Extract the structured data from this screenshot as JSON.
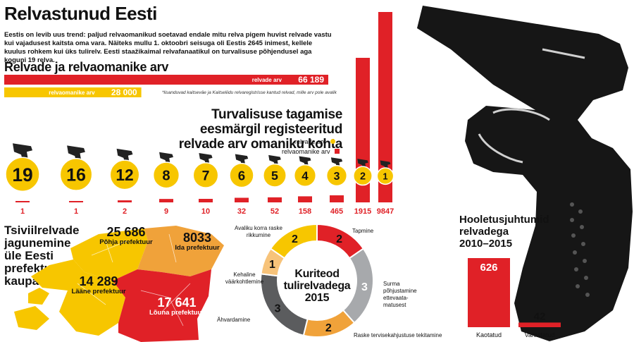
{
  "title": "Relvastunud Eesti",
  "intro": "Eestis on levib uus trend: paljud relvaomanikud soetavad endale mitu relva pigem huvist relvade vastu kui vajadusest kaitsta oma vara. Näiteks mullu 1. oktoobri seisuga oli Eestis 2645 inimest, kellele kuulus rohkem kui üks tulirelv. Eesti staažikaimal relvafanaatikul on turvalisuse põhjendusel aga koguni 19 relva.",
  "colors": {
    "red": "#e02127",
    "yellow": "#f7c600",
    "orange": "#f0a23a",
    "gray": "#6d6e71"
  },
  "chart_data": [
    {
      "type": "bar",
      "title": "Relvade ja relvaomanike arv",
      "categories": [
        "relvade arv",
        "relvaomanike arv"
      ],
      "values": [
        66189,
        28000
      ],
      "value_labels": [
        "66 189",
        "28 000"
      ],
      "note": "*lisanduvad kaitseväe ja Kaitseliidu relvaregistrisse kantud relvad, mille arv pole avalik"
    },
    {
      "type": "bar",
      "title": "Turvalisuse tagamise eesmärgil registeeritud relvade arv omaniku kohta",
      "legend": [
        "relvade arv",
        "relvaomanike arv"
      ],
      "weapons_per_owner": [
        19,
        16,
        12,
        8,
        7,
        6,
        5,
        4,
        3,
        2,
        1
      ],
      "owners": [
        1,
        1,
        2,
        9,
        10,
        32,
        52,
        158,
        465,
        1915,
        9847
      ],
      "owner_labels": [
        "1",
        "1",
        "2",
        "9",
        "10",
        "32",
        "52",
        "158",
        "465",
        "1915",
        "9847"
      ]
    },
    {
      "type": "map",
      "title": "Tsiviilrelvade jagunemine üle Eesti prefektuuride kaupa",
      "regions": [
        {
          "name": "Põhja prefektuur",
          "value": "25 686"
        },
        {
          "name": "Ida prefektuur",
          "value": "8033"
        },
        {
          "name": "Lääne prefektuur",
          "value": "14 289"
        },
        {
          "name": "Lõuna prefektuur",
          "value": "17 641"
        }
      ]
    },
    {
      "type": "pie",
      "title": "Kuriteod tulirelvadega 2015",
      "slices": [
        {
          "label": "Tapmine",
          "value": 2
        },
        {
          "label": "Surma põhjustamine ettevaata-matusest",
          "value": 3
        },
        {
          "label": "Raske tervisekahjustuse tekitamine",
          "value": 2
        },
        {
          "label": "Ähvardamine",
          "value": 3
        },
        {
          "label": "Kehaline väärkohtlemine",
          "value": 1
        },
        {
          "label": "Avaliku korra raske rikkumine",
          "value": 2
        }
      ]
    },
    {
      "type": "bar",
      "title": "Hooletusjuhtumid relvadega 2010–2015",
      "categories": [
        "Kaotatud",
        "Varastatud"
      ],
      "values": [
        626,
        42
      ]
    }
  ]
}
